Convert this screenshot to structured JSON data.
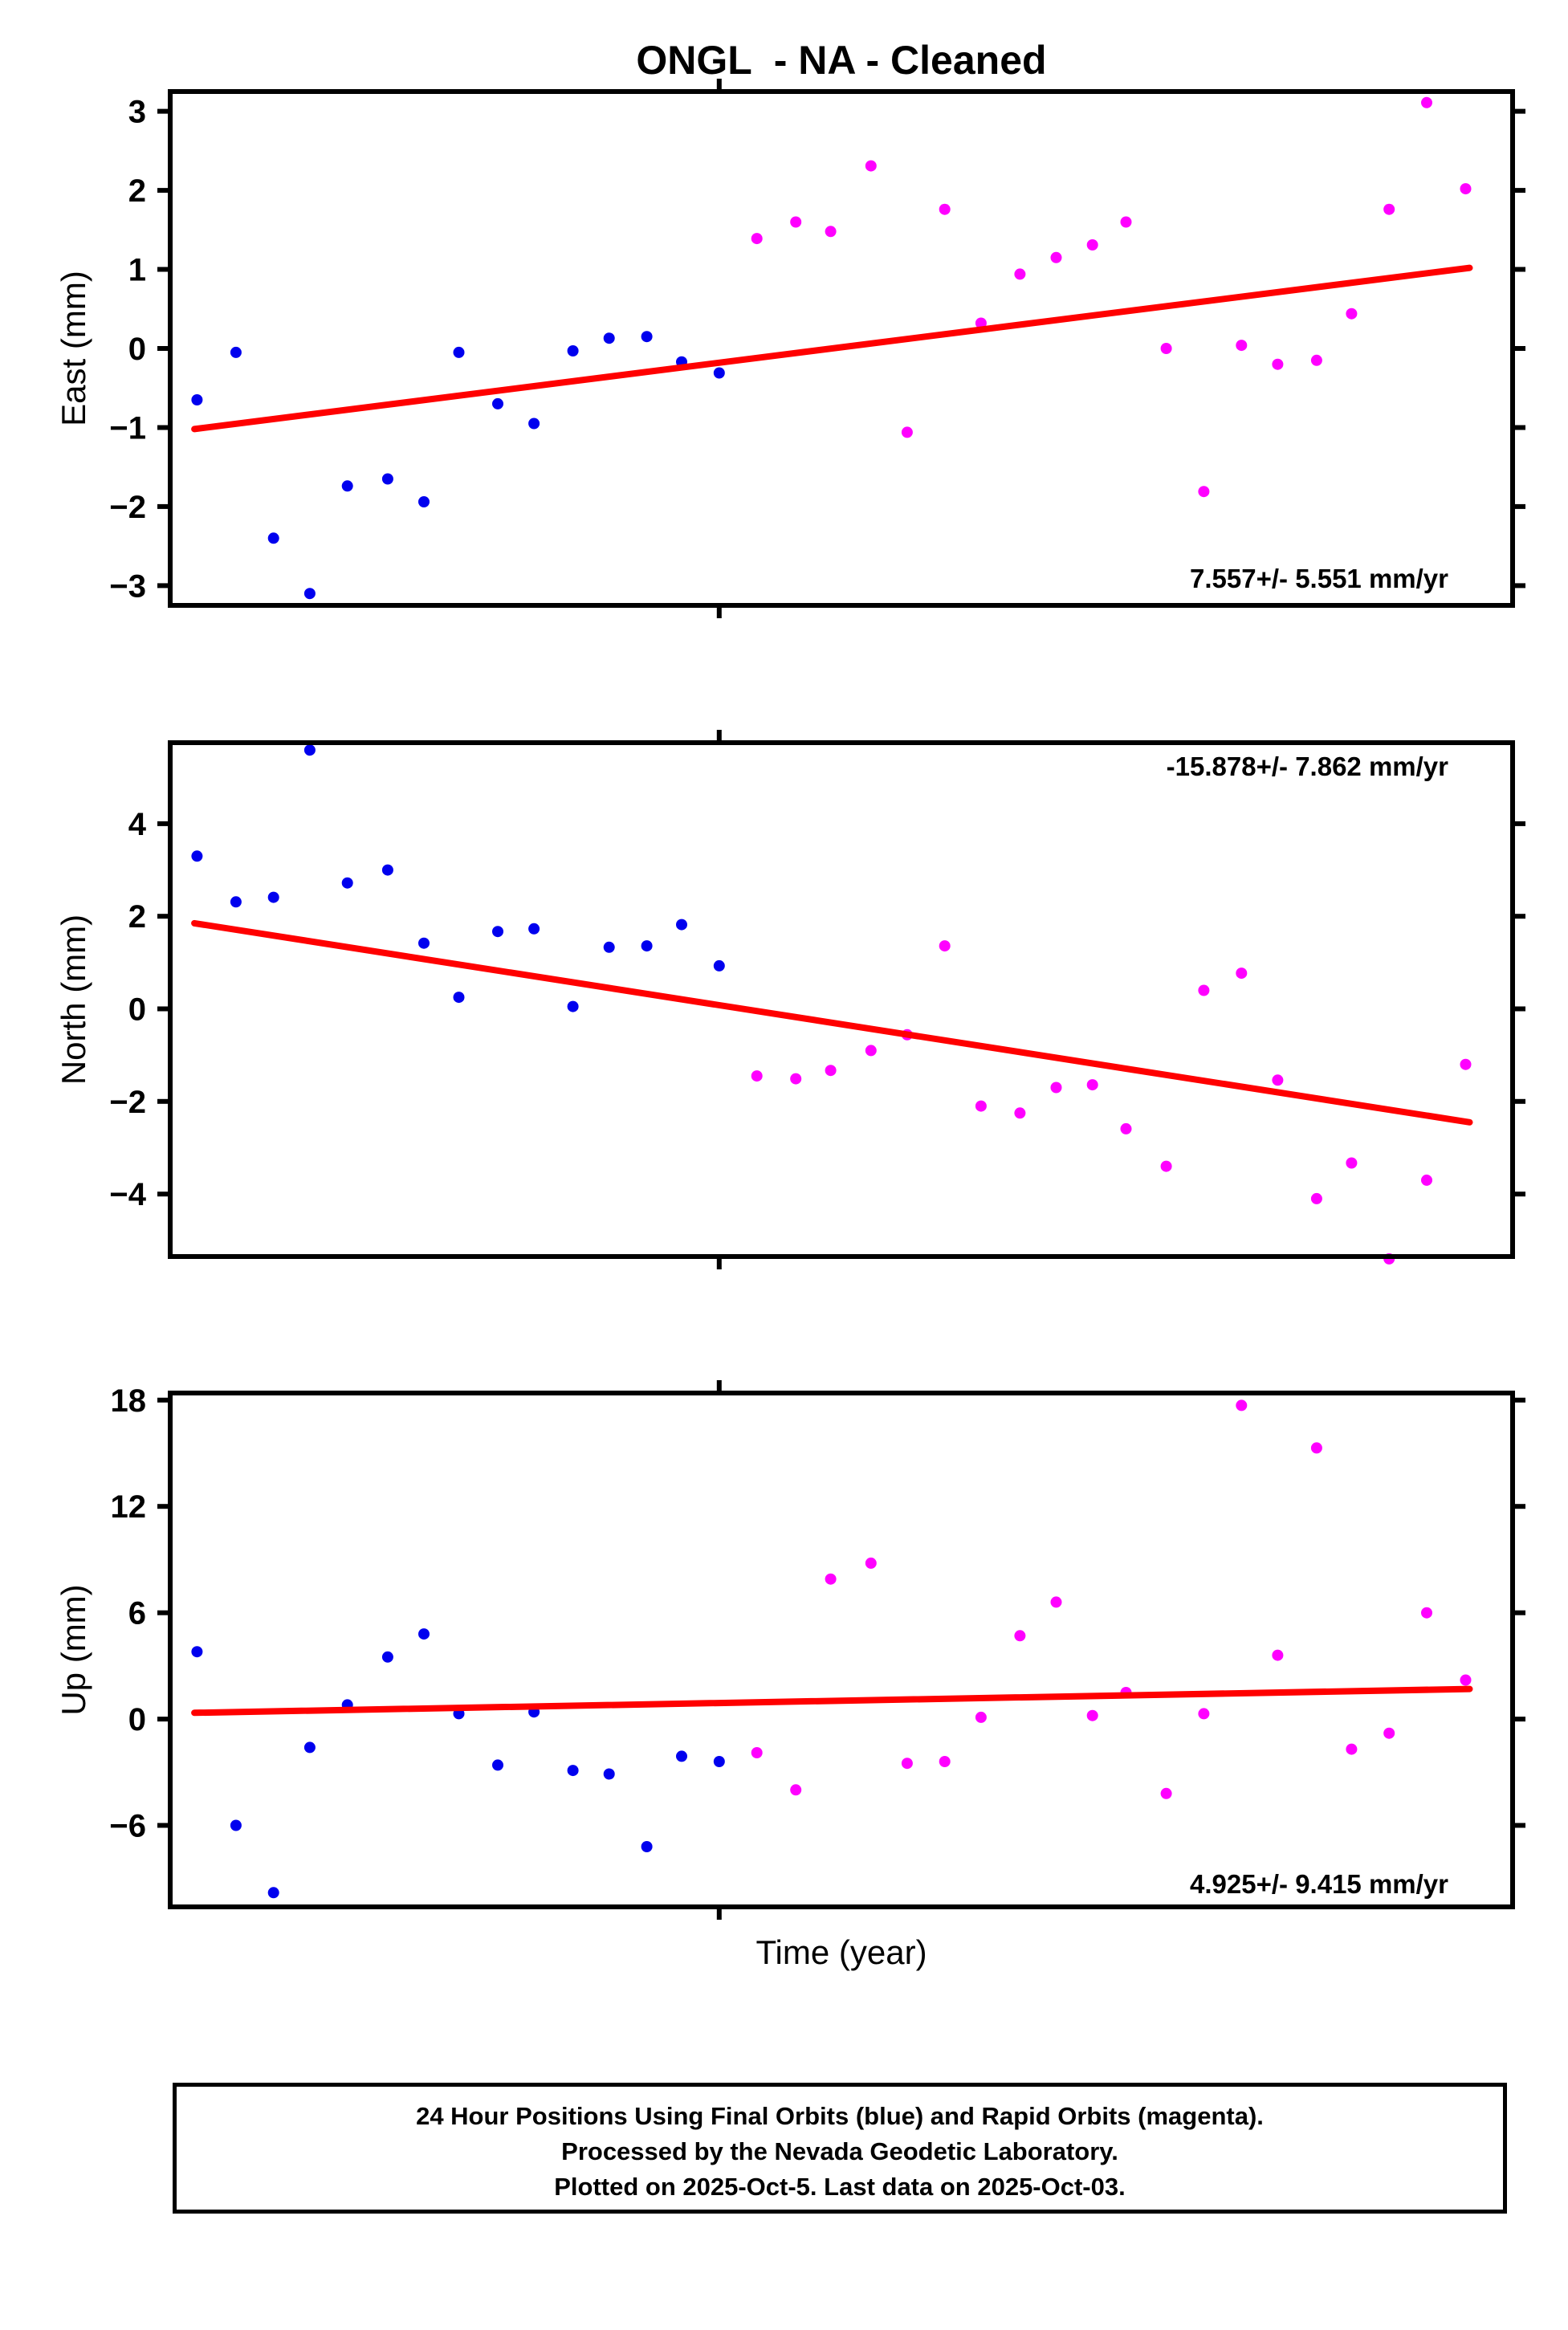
{
  "title": "ONGL  - NA - Cleaned",
  "xlabel": "Time (year)",
  "colors": {
    "final": "#0000ee",
    "rapid": "#ff00ff",
    "trend": "#ff0000",
    "frame": "#000000"
  },
  "footer": {
    "line1": "24 Hour Positions Using Final Orbits (blue) and Rapid Orbits (magenta).",
    "line2": "Processed by the Nevada Geodetic Laboratory.",
    "line3": "Plotted on 2025-Oct-5. Last data on 2025-Oct-03."
  },
  "chart_data": [
    {
      "type": "scatter",
      "ylabel": "East (mm)",
      "ylim": [
        -3.25,
        3.25
      ],
      "yticks": [
        -3,
        -2,
        -1,
        0,
        1,
        2,
        3
      ],
      "rate_label": "7.557+/- 5.551 mm/yr",
      "rate_label_pos": "bottom-right",
      "trend": {
        "x_frac": [
          0.018,
          0.968
        ],
        "y": [
          -1.02,
          1.02
        ]
      },
      "series": [
        {
          "key": "final",
          "name": "Final Orbits",
          "points": [
            [
              0.02,
              -0.65
            ],
            [
              0.049,
              -0.05
            ],
            [
              0.077,
              -2.4
            ],
            [
              0.104,
              -3.1
            ],
            [
              0.132,
              -1.74
            ],
            [
              0.162,
              -1.65
            ],
            [
              0.189,
              -1.94
            ],
            [
              0.215,
              -0.05
            ],
            [
              0.244,
              -0.7
            ],
            [
              0.271,
              -0.95
            ],
            [
              0.3,
              -0.03
            ],
            [
              0.327,
              0.13
            ],
            [
              0.355,
              0.15
            ],
            [
              0.381,
              -0.17
            ],
            [
              0.409,
              -0.31
            ]
          ]
        },
        {
          "key": "rapid",
          "name": "Rapid Orbits",
          "points": [
            [
              0.437,
              1.39
            ],
            [
              0.466,
              1.6
            ],
            [
              0.492,
              1.48
            ],
            [
              0.522,
              2.31
            ],
            [
              0.549,
              -1.06
            ],
            [
              0.577,
              1.76
            ],
            [
              0.604,
              0.32
            ],
            [
              0.633,
              0.94
            ],
            [
              0.66,
              1.15
            ],
            [
              0.687,
              1.31
            ],
            [
              0.712,
              1.6
            ],
            [
              0.742,
              0.0
            ],
            [
              0.77,
              -1.81
            ],
            [
              0.798,
              0.04
            ],
            [
              0.825,
              -0.2
            ],
            [
              0.854,
              -0.15
            ],
            [
              0.88,
              0.44
            ],
            [
              0.908,
              1.76
            ],
            [
              0.936,
              3.11
            ],
            [
              0.965,
              2.02
            ]
          ]
        }
      ]
    },
    {
      "type": "scatter",
      "ylabel": "North (mm)",
      "ylim": [
        -5.35,
        5.75
      ],
      "yticks": [
        -4,
        -2,
        0,
        2,
        4
      ],
      "rate_label": "-15.878+/- 7.862 mm/yr",
      "rate_label_pos": "top-right",
      "trend": {
        "x_frac": [
          0.018,
          0.968
        ],
        "y": [
          1.85,
          -2.45
        ]
      },
      "series": [
        {
          "key": "final",
          "name": "Final Orbits",
          "points": [
            [
              0.02,
              3.3
            ],
            [
              0.049,
              2.31
            ],
            [
              0.077,
              2.41
            ],
            [
              0.104,
              5.59
            ],
            [
              0.132,
              2.72
            ],
            [
              0.162,
              3.0
            ],
            [
              0.189,
              1.42
            ],
            [
              0.215,
              0.25
            ],
            [
              0.244,
              1.67
            ],
            [
              0.271,
              1.73
            ],
            [
              0.3,
              0.05
            ],
            [
              0.327,
              1.33
            ],
            [
              0.355,
              1.36
            ],
            [
              0.381,
              1.82
            ],
            [
              0.409,
              0.93
            ]
          ]
        },
        {
          "key": "rapid",
          "name": "Rapid Orbits",
          "points": [
            [
              0.437,
              -1.45
            ],
            [
              0.466,
              -1.51
            ],
            [
              0.492,
              -1.33
            ],
            [
              0.522,
              -0.9
            ],
            [
              0.549,
              -0.56
            ],
            [
              0.577,
              1.36
            ],
            [
              0.604,
              -2.1
            ],
            [
              0.633,
              -2.25
            ],
            [
              0.66,
              -1.7
            ],
            [
              0.687,
              -1.64
            ],
            [
              0.712,
              -2.59
            ],
            [
              0.742,
              -3.4
            ],
            [
              0.77,
              0.4
            ],
            [
              0.798,
              0.77
            ],
            [
              0.825,
              -1.54
            ],
            [
              0.854,
              -4.1
            ],
            [
              0.88,
              -3.33
            ],
            [
              0.908,
              -5.4
            ],
            [
              0.936,
              -3.7
            ],
            [
              0.965,
              -1.2
            ]
          ]
        }
      ]
    },
    {
      "type": "scatter",
      "ylabel": "Up (mm)",
      "ylim": [
        -10.6,
        18.4
      ],
      "yticks": [
        -6,
        0,
        6,
        12,
        18
      ],
      "rate_label": "4.925+/- 9.415 mm/yr",
      "rate_label_pos": "bottom-right",
      "trend": {
        "x_frac": [
          0.018,
          0.968
        ],
        "y": [
          0.35,
          1.7
        ]
      },
      "series": [
        {
          "key": "final",
          "name": "Final Orbits",
          "points": [
            [
              0.02,
              3.8
            ],
            [
              0.049,
              -6.0
            ],
            [
              0.077,
              -9.8
            ],
            [
              0.104,
              -1.6
            ],
            [
              0.132,
              0.8
            ],
            [
              0.162,
              3.5
            ],
            [
              0.189,
              4.8
            ],
            [
              0.215,
              0.3
            ],
            [
              0.244,
              -2.6
            ],
            [
              0.271,
              0.4
            ],
            [
              0.3,
              -2.9
            ],
            [
              0.327,
              -3.1
            ],
            [
              0.355,
              -7.2
            ],
            [
              0.381,
              -2.1
            ],
            [
              0.409,
              -2.4
            ]
          ]
        },
        {
          "key": "rapid",
          "name": "Rapid Orbits",
          "points": [
            [
              0.437,
              -1.9
            ],
            [
              0.466,
              -4.0
            ],
            [
              0.492,
              7.9
            ],
            [
              0.522,
              8.8
            ],
            [
              0.549,
              -2.5
            ],
            [
              0.577,
              -2.4
            ],
            [
              0.604,
              0.1
            ],
            [
              0.633,
              4.7
            ],
            [
              0.66,
              6.6
            ],
            [
              0.687,
              0.2
            ],
            [
              0.712,
              1.5
            ],
            [
              0.742,
              -4.2
            ],
            [
              0.77,
              0.3
            ],
            [
              0.798,
              17.7
            ],
            [
              0.825,
              3.6
            ],
            [
              0.854,
              15.3
            ],
            [
              0.88,
              -1.7
            ],
            [
              0.908,
              -0.8
            ],
            [
              0.936,
              6.0
            ],
            [
              0.965,
              2.2
            ]
          ]
        }
      ]
    }
  ]
}
